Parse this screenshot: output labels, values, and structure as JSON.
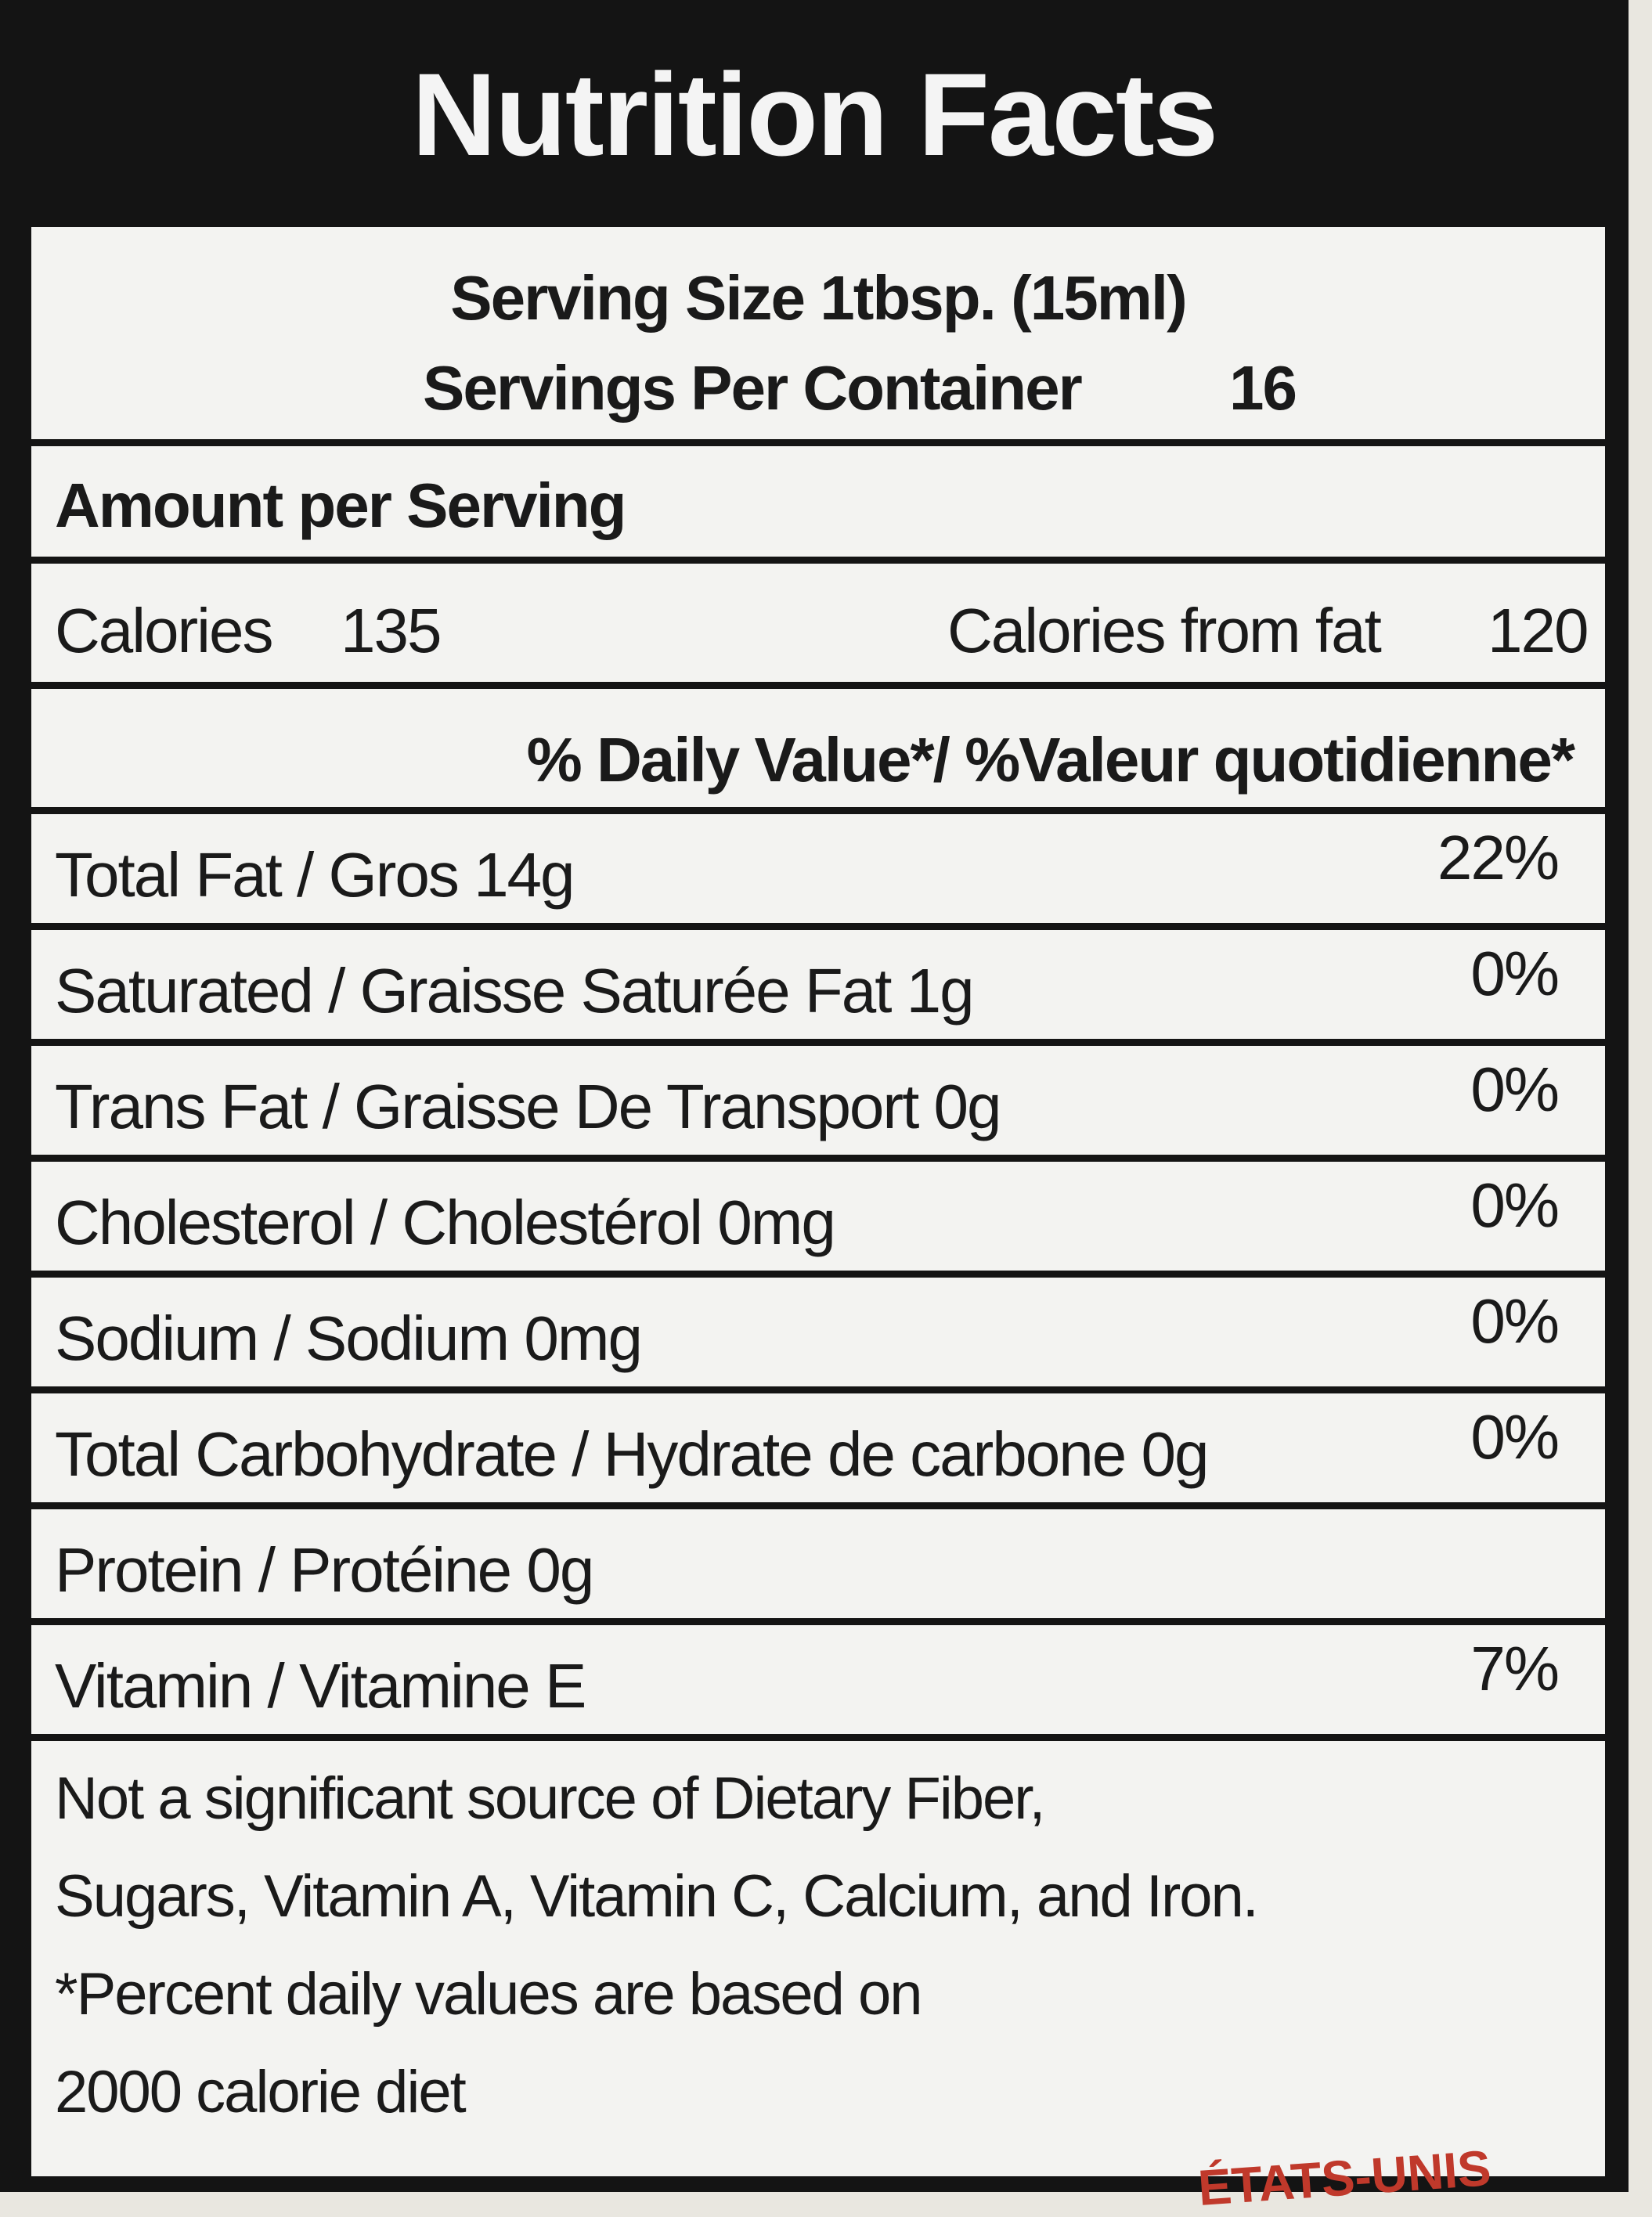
{
  "header": {
    "title": "Nutrition Facts"
  },
  "serving": {
    "size": "Serving Size 1tbsp. (15ml)",
    "per_container_label": "Servings Per Container",
    "per_container": 16
  },
  "amount_per_serving": "Amount per Serving",
  "calories": {
    "label": "Calories",
    "value": 135,
    "fat_label": "Calories from fat",
    "fat_value": 120
  },
  "daily_value_header": "% Daily Value*/ %Valeur quotidienne*",
  "rows": [
    {
      "label": "Total Fat / Gros 14g",
      "percent": "22%"
    },
    {
      "label": "Saturated / Graisse Saturée  Fat 1g",
      "percent": "0%"
    },
    {
      "label": "Trans Fat / Graisse De Transport  0g",
      "percent": "0%"
    },
    {
      "label": "Cholesterol / Cholestérol  0mg",
      "percent": "0%"
    },
    {
      "label": "Sodium / Sodium  0mg",
      "percent": "0%"
    },
    {
      "label": "Total Carbohydrate / Hydrate de carbone  0g",
      "percent": "0%"
    },
    {
      "label": "Protein / Protéine  0g",
      "percent": null
    },
    {
      "label": "Vitamin / Vitamine  E",
      "percent": "7%"
    }
  ],
  "footnote": [
    "Not a significant source of Dietary Fiber,",
    "Sugars, Vitamin A, Vitamin C, Calcium, and Iron.",
    "*Percent daily values are based on",
    "2000 calorie diet"
  ],
  "footer_fragment": "ÉTATS-UNIS"
}
